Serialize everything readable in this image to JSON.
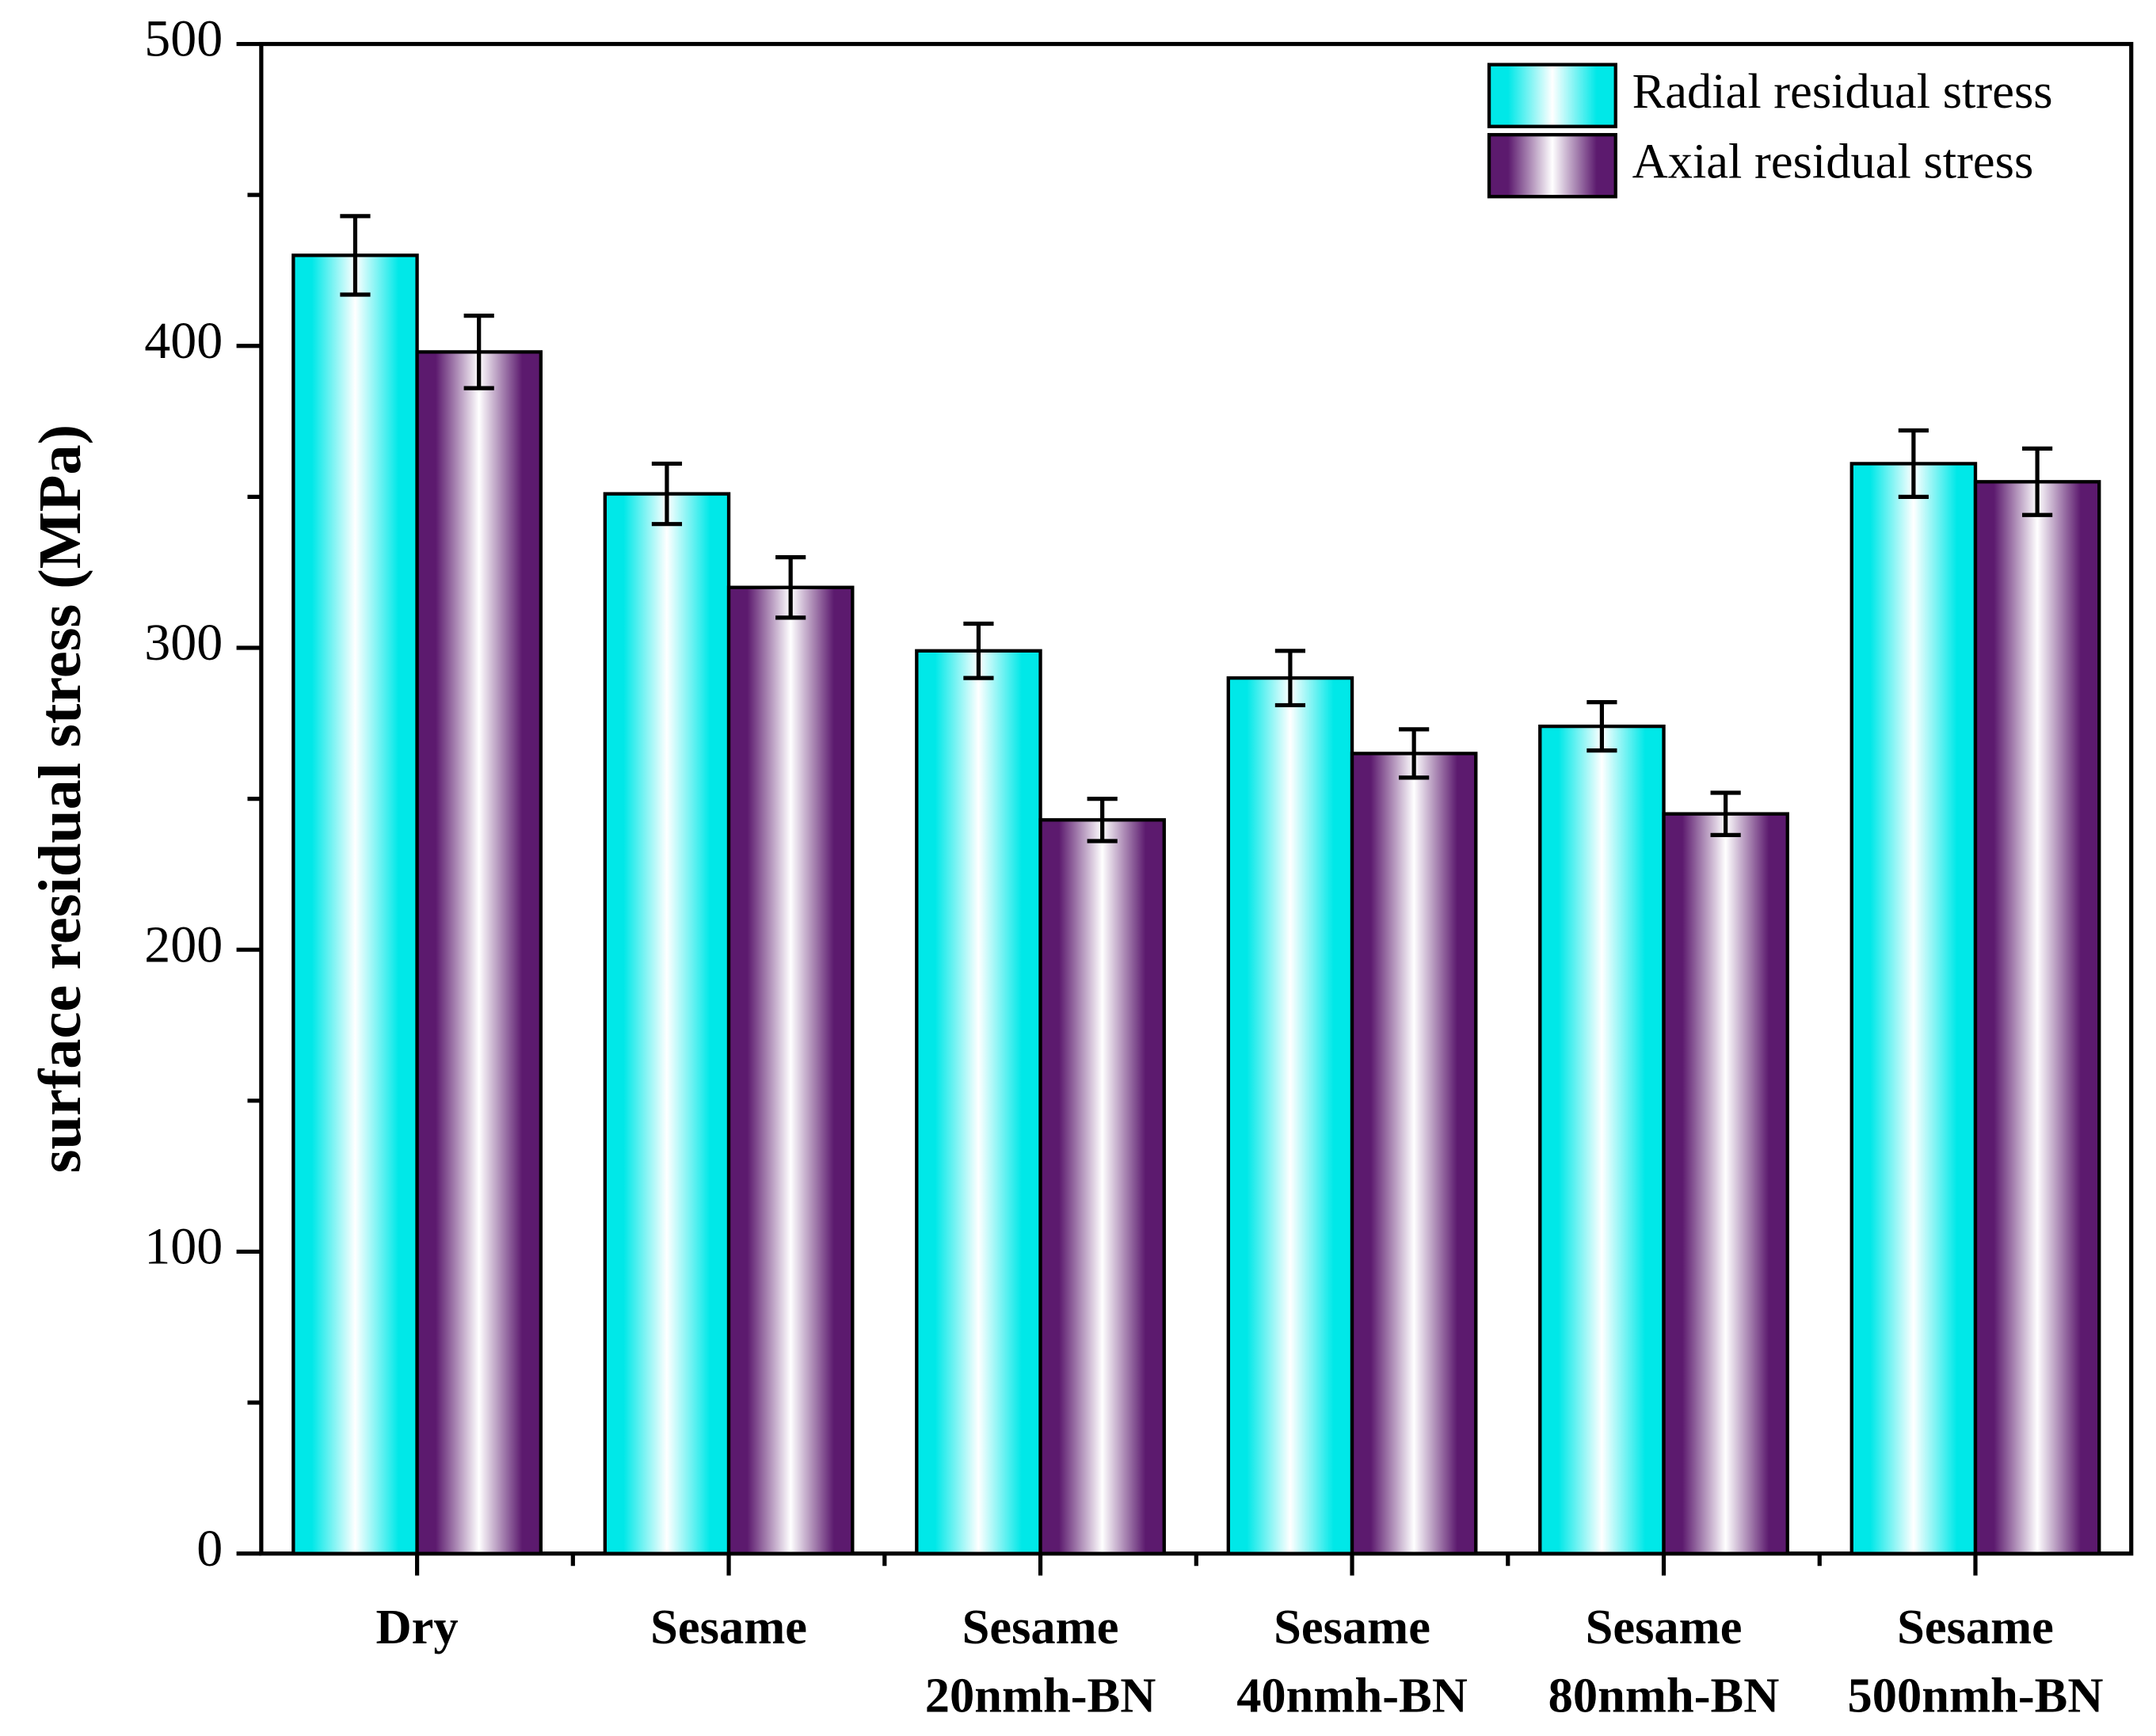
{
  "chart_data": {
    "type": "bar",
    "y_label": "surface residual stress (MPa)",
    "categories": [
      [
        "Dry"
      ],
      [
        "Sesame"
      ],
      [
        "Sesame",
        "20nmh-BN"
      ],
      [
        "Sesame",
        "40nmh-BN"
      ],
      [
        "Sesame",
        "80nmh-BN"
      ],
      [
        "Sesame",
        "500nmh-BN"
      ]
    ],
    "series": [
      {
        "name": "Radial residual stress",
        "color": "#00e8e8",
        "values": [
          430,
          351,
          299,
          290,
          274,
          361
        ],
        "errors": [
          13,
          10,
          9,
          9,
          8,
          11
        ]
      },
      {
        "name": "Axial residual stress",
        "color": "#5c1a6e",
        "values": [
          398,
          320,
          243,
          265,
          245,
          355
        ],
        "errors": [
          12,
          10,
          7,
          8,
          7,
          11
        ]
      }
    ],
    "ylim": [
      0,
      500
    ],
    "yticks": [
      0,
      100,
      200,
      300,
      400,
      500
    ],
    "yminorticks": [
      50,
      150,
      250,
      350,
      450
    ],
    "legend": "top-right",
    "grid": false
  }
}
